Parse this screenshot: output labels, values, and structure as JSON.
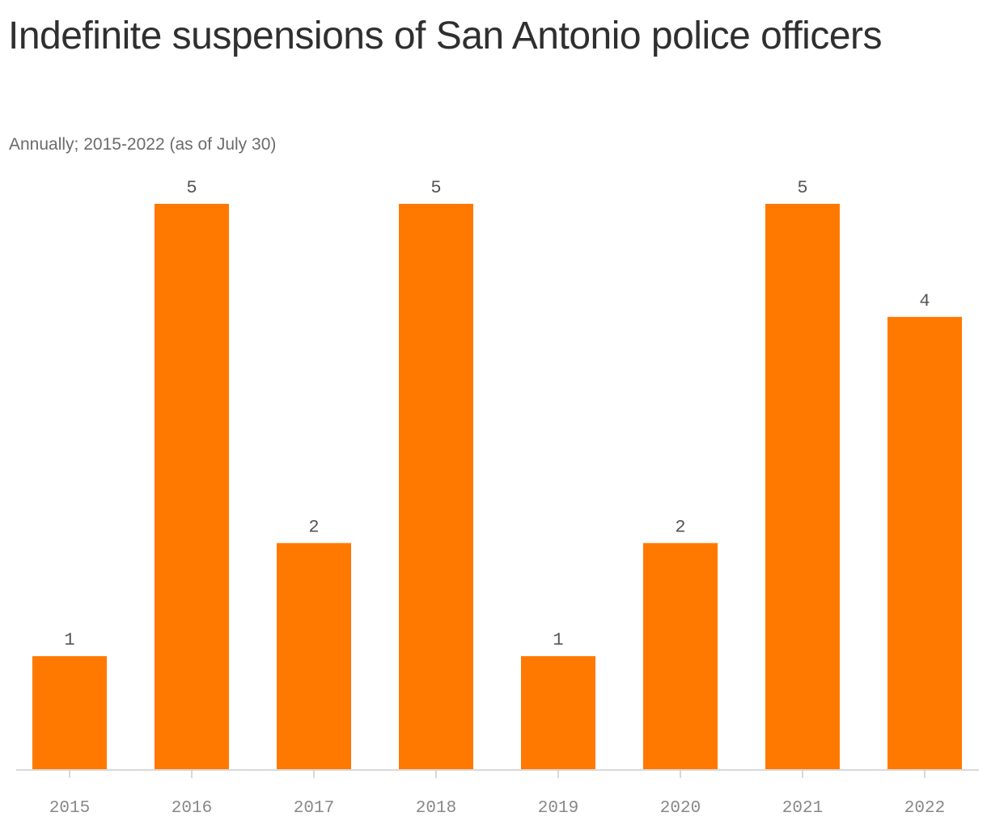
{
  "title": "Indefinite suspensions of San Antonio police officers",
  "subtitle": "Annually; 2015-2022 (as of July 30)",
  "colors": {
    "bar": "#ff7900",
    "axis": "#d9d9d9",
    "tick": "#cccccc"
  },
  "chart_data": {
    "type": "bar",
    "categories": [
      "2015",
      "2016",
      "2017",
      "2018",
      "2019",
      "2020",
      "2021",
      "2022"
    ],
    "values": [
      1,
      5,
      2,
      5,
      1,
      2,
      5,
      4
    ],
    "title": "Indefinite suspensions of San Antonio police officers",
    "subtitle": "Annually; 2015-2022 (as of July 30)",
    "ylim": [
      0,
      5
    ],
    "grid": false,
    "data_labels": true
  }
}
